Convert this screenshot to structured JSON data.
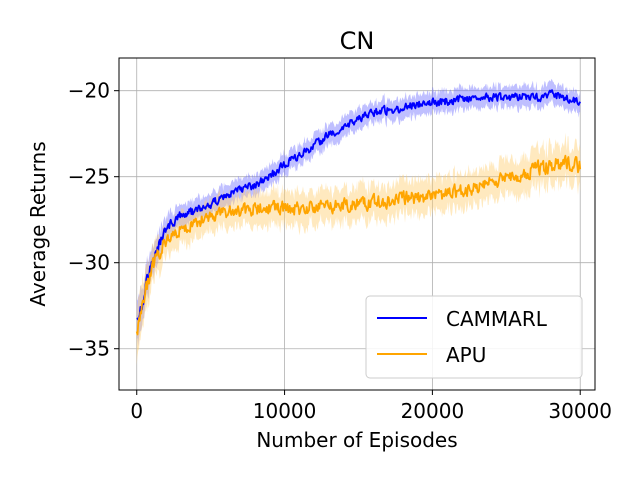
{
  "chart_data": {
    "type": "line",
    "title": "CN",
    "xlabel": "Number of Episodes",
    "ylabel": "Average Returns",
    "xlim": [
      -1200,
      31000
    ],
    "ylim": [
      -37.4,
      -18.1
    ],
    "xticks": [
      0,
      10000,
      20000,
      30000
    ],
    "yticks": [
      -35,
      -30,
      -25,
      -20
    ],
    "xtick_labels": [
      "0",
      "10000",
      "20000",
      "30000"
    ],
    "ytick_labels": [
      "−35",
      "−30",
      "−25",
      "−20"
    ],
    "grid": true,
    "legend_position": "lower-right",
    "series": [
      {
        "name": "CAMMARL",
        "color": "#0000ff",
        "band_color": "#7070ff",
        "x": [
          0,
          300,
          600,
          1000,
          1500,
          2000,
          3000,
          4000,
          5000,
          6000,
          7000,
          8000,
          9000,
          10000,
          11000,
          12000,
          13000,
          14000,
          15000,
          16000,
          17000,
          18000,
          19000,
          20000,
          21000,
          22000,
          23000,
          24000,
          25000,
          26000,
          27000,
          28000,
          29000,
          30000
        ],
        "y": [
          -33.0,
          -32.6,
          -31.3,
          -30.2,
          -29.0,
          -28.0,
          -27.2,
          -27.0,
          -26.6,
          -26.1,
          -25.8,
          -25.5,
          -25.0,
          -24.3,
          -23.8,
          -23.2,
          -22.6,
          -22.1,
          -21.7,
          -21.3,
          -21.1,
          -21.0,
          -20.8,
          -20.7,
          -20.6,
          -20.5,
          -20.4,
          -20.4,
          -20.4,
          -20.3,
          -20.4,
          -20.2,
          -20.4,
          -20.6
        ],
        "band": [
          1.4,
          1.2,
          1.0,
          0.9,
          0.8,
          0.7,
          0.6,
          0.6,
          0.6,
          0.6,
          0.6,
          0.6,
          0.6,
          0.6,
          0.6,
          0.6,
          0.6,
          0.6,
          0.6,
          0.6,
          0.6,
          0.6,
          0.6,
          0.6,
          0.6,
          0.6,
          0.6,
          0.6,
          0.6,
          0.6,
          0.6,
          0.6,
          0.6,
          0.6
        ]
      },
      {
        "name": "APU",
        "color": "#ffa500",
        "band_color": "#ffcf70",
        "x": [
          0,
          300,
          600,
          1000,
          1500,
          2000,
          3000,
          4000,
          5000,
          6000,
          7000,
          8000,
          9000,
          10000,
          11000,
          12000,
          13000,
          14000,
          15000,
          16000,
          17000,
          18000,
          19000,
          20000,
          21000,
          22000,
          23000,
          24000,
          25000,
          26000,
          27000,
          28000,
          29000,
          30000
        ],
        "y": [
          -33.8,
          -33.0,
          -31.8,
          -30.4,
          -29.4,
          -28.8,
          -28.0,
          -27.7,
          -27.3,
          -27.1,
          -27.0,
          -26.9,
          -26.8,
          -26.8,
          -26.9,
          -26.8,
          -26.7,
          -26.6,
          -26.6,
          -26.5,
          -26.4,
          -26.3,
          -26.2,
          -26.1,
          -26.0,
          -25.8,
          -25.6,
          -25.3,
          -25.0,
          -24.8,
          -24.6,
          -24.3,
          -24.2,
          -24.4
        ],
        "band": [
          1.6,
          1.4,
          1.2,
          1.1,
          1.0,
          0.9,
          0.9,
          0.9,
          0.9,
          0.9,
          0.9,
          1.0,
          1.0,
          1.0,
          1.0,
          1.0,
          1.0,
          1.0,
          1.0,
          1.0,
          1.0,
          1.0,
          1.0,
          1.0,
          1.0,
          1.0,
          1.0,
          1.0,
          1.0,
          1.1,
          1.1,
          1.1,
          1.1,
          1.1
        ]
      }
    ]
  }
}
